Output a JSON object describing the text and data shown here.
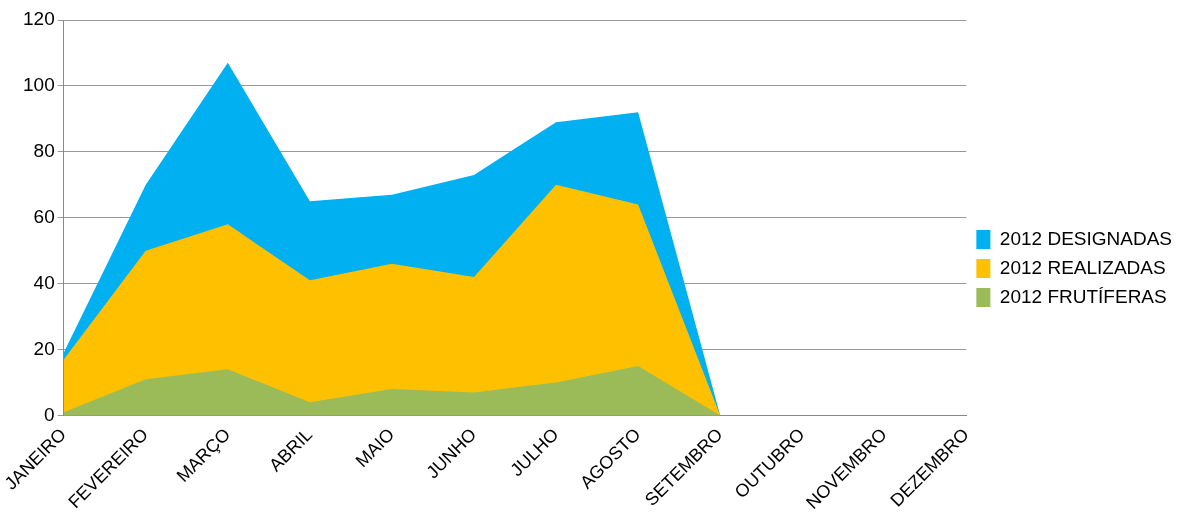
{
  "chart_data": {
    "type": "area",
    "categories": [
      "JANEIRO",
      "FEVEREIRO",
      "MARÇO",
      "ABRIL",
      "MAIO",
      "JUNHO",
      "JULHO",
      "AGOSTO",
      "SETEMBRO",
      "OUTUBRO",
      "NOVEMBRO",
      "DEZEMBRO"
    ],
    "series": [
      {
        "name": "2012 DESIGNADAS",
        "color": "#00b0f0",
        "values": [
          19,
          70,
          107,
          65,
          67,
          73,
          89,
          92,
          0,
          null,
          null,
          null
        ]
      },
      {
        "name": "2012 REALIZADAS",
        "color": "#ffc000",
        "values": [
          17,
          50,
          58,
          41,
          46,
          42,
          70,
          64,
          0,
          null,
          null,
          null
        ]
      },
      {
        "name": "2012 FRUTÍFERAS",
        "color": "#9bbb59",
        "values": [
          1,
          11,
          14,
          4,
          8,
          7,
          10,
          15,
          0,
          null,
          null,
          null
        ]
      }
    ],
    "ylim": [
      0,
      120
    ],
    "yticks": [
      0,
      20,
      40,
      60,
      80,
      100,
      120
    ],
    "grid": "y",
    "legend": "right",
    "marker": "none"
  }
}
